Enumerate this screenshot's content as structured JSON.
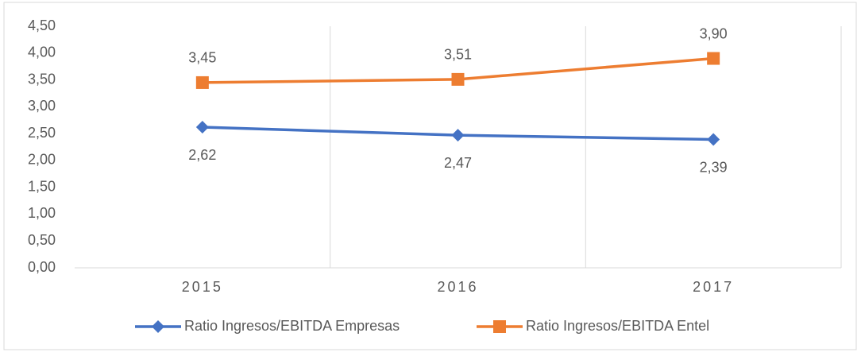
{
  "chart_data": {
    "type": "line",
    "categories": [
      "2015",
      "2016",
      "2017"
    ],
    "series": [
      {
        "name": "Ratio Ingresos/EBITDA Empresas",
        "color": "#4472c4",
        "marker": "diamond",
        "values": [
          2.62,
          2.47,
          2.39
        ],
        "value_labels": [
          "2,62",
          "2,47",
          "2,39"
        ]
      },
      {
        "name": "Ratio Ingresos/EBITDA Entel",
        "color": "#ed7d31",
        "marker": "square",
        "values": [
          3.45,
          3.51,
          3.9
        ],
        "value_labels": [
          "3,45",
          "3,51",
          "3,90"
        ]
      }
    ],
    "ylim": [
      0,
      4.5
    ],
    "yticks": [
      {
        "value": 0,
        "label": "0,00"
      },
      {
        "value": 0.5,
        "label": "0,50"
      },
      {
        "value": 1,
        "label": "1,00"
      },
      {
        "value": 1.5,
        "label": "1,50"
      },
      {
        "value": 2,
        "label": "2,00"
      },
      {
        "value": 2.5,
        "label": "2,50"
      },
      {
        "value": 3,
        "label": "3,00"
      },
      {
        "value": 3.5,
        "label": "3,50"
      },
      {
        "value": 4,
        "label": "4,00"
      },
      {
        "value": 4.5,
        "label": "4,50"
      }
    ],
    "grid": true,
    "legend": "bottom"
  }
}
